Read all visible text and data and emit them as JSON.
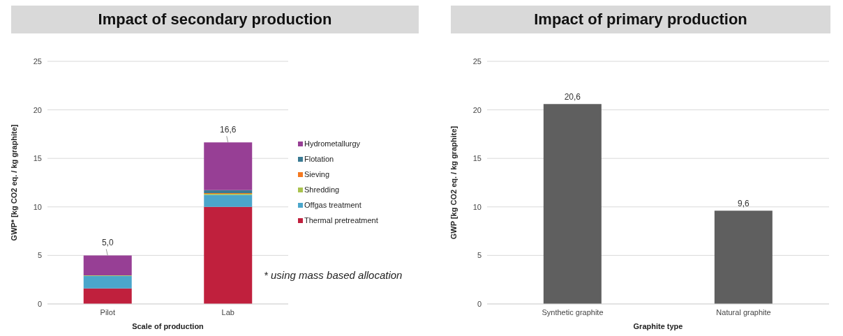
{
  "chart_data": [
    {
      "type": "bar",
      "title": "Impact of secondary production",
      "xlabel": "Scale of production",
      "ylabel": "GWP* [kg CO2 eq. / kg graphite]",
      "categories": [
        "Pilot",
        "Lab"
      ],
      "stacked": true,
      "series": [
        {
          "name": "Thermal pretreatment",
          "color": "#c0203d",
          "values": [
            1.6,
            10.0
          ]
        },
        {
          "name": "Offgas treatment",
          "color": "#4ba6cb",
          "values": [
            1.3,
            1.25
          ]
        },
        {
          "name": "Shredding",
          "color": "#a9c24e",
          "values": [
            0.05,
            0.1
          ]
        },
        {
          "name": "Sieving",
          "color": "#f47920",
          "values": [
            0,
            0.07
          ]
        },
        {
          "name": "Flotation",
          "color": "#3a7a93",
          "values": [
            0,
            0.3
          ]
        },
        {
          "name": "Hydrometallurgy",
          "color": "#973f95",
          "values": [
            2.05,
            4.93
          ]
        }
      ],
      "totals": [
        "5,0",
        "16,6"
      ],
      "ylim": [
        0,
        25
      ],
      "yticks": [
        0,
        5,
        10,
        15,
        20,
        25
      ],
      "grid": "y",
      "legend": "right",
      "annotations": [
        "* using mass based allocation"
      ]
    },
    {
      "type": "bar",
      "title": "Impact of primary production",
      "xlabel": "Graphite type",
      "ylabel": "GWP [kg CO2 eq. / kg graphite]",
      "categories": [
        "Synthetic graphite",
        "Natural graphite"
      ],
      "values": [
        20.6,
        9.6
      ],
      "color": "#5f5f5f",
      "value_labels": [
        "20,6",
        "9,6"
      ],
      "ylim": [
        0,
        25
      ],
      "yticks": [
        0,
        5,
        10,
        15,
        20,
        25
      ],
      "grid": "y"
    }
  ]
}
